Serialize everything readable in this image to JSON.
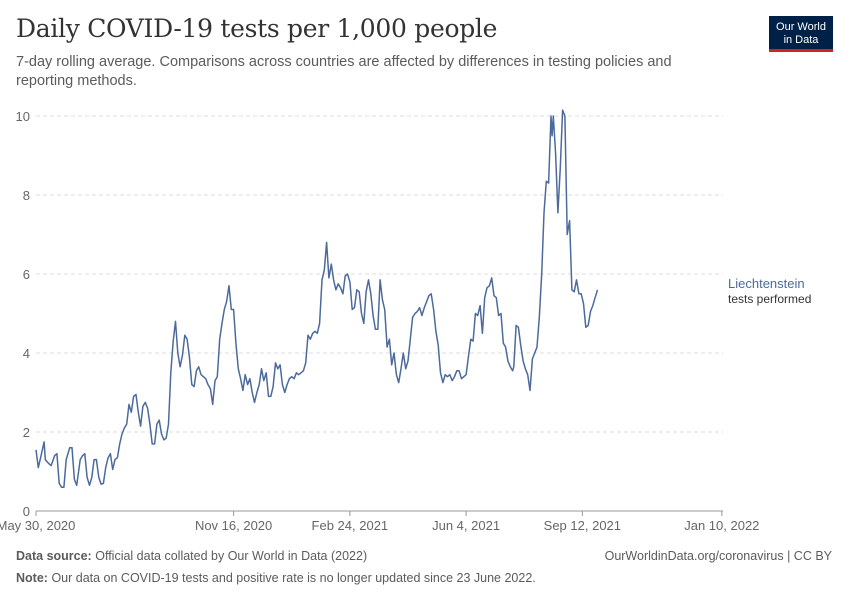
{
  "header": {
    "title": "Daily COVID-19 tests per 1,000 people",
    "subtitle": "7-day rolling average. Comparisons across countries are affected by differences in testing policies and reporting methods."
  },
  "logo": {
    "line1": "Our World",
    "line2": "in Data"
  },
  "footer": {
    "source_label": "Data source:",
    "source_text": "Official data collated by Our World in Data (2022)",
    "url": "OurWorldinData.org/coronavirus | CC BY",
    "note_label": "Note:",
    "note_text": "Our data on COVID-19 tests and positive rate is no longer updated since 23 June 2022."
  },
  "colors": {
    "series": "#4c6a9c",
    "grid": "#dddddd",
    "axis": "#666666"
  },
  "chart_data": {
    "type": "line",
    "title": "Daily COVID-19 tests per 1,000 people",
    "xlabel": "",
    "ylabel": "",
    "ylim": [
      0,
      10
    ],
    "xlim": [
      0,
      591
    ],
    "yticks": [
      0,
      2,
      4,
      6,
      8,
      10
    ],
    "xticks": [
      {
        "day": 0,
        "label": "May 30, 2020"
      },
      {
        "day": 170,
        "label": "Nov 16, 2020"
      },
      {
        "day": 270,
        "label": "Feb 24, 2021"
      },
      {
        "day": 370,
        "label": "Jun 4, 2021"
      },
      {
        "day": 470,
        "label": "Sep 12, 2021"
      },
      {
        "day": 590,
        "label": "Jan 10, 2022"
      }
    ],
    "grid": true,
    "series": [
      {
        "name": "Liechtenstein",
        "sublabel": "tests performed",
        "points": [
          [
            0,
            1.55
          ],
          [
            2,
            1.1
          ],
          [
            4,
            1.35
          ],
          [
            7,
            1.75
          ],
          [
            8,
            1.3
          ],
          [
            11,
            1.2
          ],
          [
            13,
            1.15
          ],
          [
            16,
            1.4
          ],
          [
            18,
            1.45
          ],
          [
            20,
            0.7
          ],
          [
            22,
            0.6
          ],
          [
            24,
            0.6
          ],
          [
            26,
            1.3
          ],
          [
            29,
            1.6
          ],
          [
            31,
            1.6
          ],
          [
            33,
            0.8
          ],
          [
            35,
            0.65
          ],
          [
            38,
            1.3
          ],
          [
            40,
            1.4
          ],
          [
            42,
            1.45
          ],
          [
            44,
            0.85
          ],
          [
            46,
            0.65
          ],
          [
            48,
            0.85
          ],
          [
            50,
            1.3
          ],
          [
            52,
            1.3
          ],
          [
            54,
            0.85
          ],
          [
            56,
            0.68
          ],
          [
            58,
            0.7
          ],
          [
            60,
            1.1
          ],
          [
            62,
            1.35
          ],
          [
            64,
            1.45
          ],
          [
            66,
            1.05
          ],
          [
            68,
            1.3
          ],
          [
            70,
            1.35
          ],
          [
            72,
            1.7
          ],
          [
            74,
            1.95
          ],
          [
            76,
            2.1
          ],
          [
            78,
            2.2
          ],
          [
            80,
            2.7
          ],
          [
            82,
            2.5
          ],
          [
            84,
            2.9
          ],
          [
            86,
            2.95
          ],
          [
            88,
            2.5
          ],
          [
            90,
            2.15
          ],
          [
            92,
            2.65
          ],
          [
            94,
            2.75
          ],
          [
            96,
            2.6
          ],
          [
            98,
            2.2
          ],
          [
            100,
            1.7
          ],
          [
            102,
            1.7
          ],
          [
            104,
            2.2
          ],
          [
            106,
            2.3
          ],
          [
            108,
            1.95
          ],
          [
            110,
            1.8
          ],
          [
            112,
            1.85
          ],
          [
            114,
            2.2
          ],
          [
            116,
            3.5
          ],
          [
            118,
            4.3
          ],
          [
            120,
            4.8
          ],
          [
            122,
            4.0
          ],
          [
            124,
            3.65
          ],
          [
            126,
            3.95
          ],
          [
            128,
            4.45
          ],
          [
            130,
            4.35
          ],
          [
            132,
            3.9
          ],
          [
            134,
            3.2
          ],
          [
            136,
            3.15
          ],
          [
            138,
            3.55
          ],
          [
            140,
            3.65
          ],
          [
            142,
            3.45
          ],
          [
            144,
            3.4
          ],
          [
            146,
            3.35
          ],
          [
            148,
            3.2
          ],
          [
            150,
            3.1
          ],
          [
            152,
            2.7
          ],
          [
            154,
            3.3
          ],
          [
            156,
            3.4
          ],
          [
            158,
            4.35
          ],
          [
            160,
            4.75
          ],
          [
            162,
            5.1
          ],
          [
            164,
            5.3
          ],
          [
            166,
            5.7
          ],
          [
            168,
            5.1
          ],
          [
            170,
            5.1
          ],
          [
            172,
            4.25
          ],
          [
            174,
            3.6
          ],
          [
            176,
            3.35
          ],
          [
            178,
            3.05
          ],
          [
            180,
            3.45
          ],
          [
            182,
            3.2
          ],
          [
            184,
            3.35
          ],
          [
            186,
            3.0
          ],
          [
            188,
            2.75
          ],
          [
            190,
            3.0
          ],
          [
            192,
            3.2
          ],
          [
            194,
            3.6
          ],
          [
            196,
            3.3
          ],
          [
            198,
            3.5
          ],
          [
            200,
            2.9
          ],
          [
            202,
            2.9
          ],
          [
            204,
            3.15
          ],
          [
            206,
            3.75
          ],
          [
            208,
            3.6
          ],
          [
            210,
            3.7
          ],
          [
            212,
            3.2
          ],
          [
            214,
            3.0
          ],
          [
            216,
            3.2
          ],
          [
            218,
            3.35
          ],
          [
            220,
            3.4
          ],
          [
            222,
            3.35
          ],
          [
            224,
            3.5
          ],
          [
            226,
            3.45
          ],
          [
            228,
            3.5
          ],
          [
            230,
            3.55
          ],
          [
            232,
            3.75
          ],
          [
            234,
            4.45
          ],
          [
            236,
            4.35
          ],
          [
            238,
            4.5
          ],
          [
            240,
            4.55
          ],
          [
            242,
            4.5
          ],
          [
            244,
            4.75
          ],
          [
            246,
            5.85
          ],
          [
            248,
            6.1
          ],
          [
            250,
            6.8
          ],
          [
            252,
            5.9
          ],
          [
            254,
            6.25
          ],
          [
            256,
            5.85
          ],
          [
            258,
            5.6
          ],
          [
            260,
            5.75
          ],
          [
            262,
            5.65
          ],
          [
            264,
            5.5
          ],
          [
            266,
            5.95
          ],
          [
            268,
            6.0
          ],
          [
            270,
            5.8
          ],
          [
            272,
            5.1
          ],
          [
            274,
            5.15
          ],
          [
            276,
            5.6
          ],
          [
            278,
            5.55
          ],
          [
            280,
            5.0
          ],
          [
            282,
            4.75
          ],
          [
            284,
            5.55
          ],
          [
            286,
            5.85
          ],
          [
            288,
            5.5
          ],
          [
            290,
            4.95
          ],
          [
            292,
            4.6
          ],
          [
            294,
            4.6
          ],
          [
            296,
            5.85
          ],
          [
            298,
            5.35
          ],
          [
            300,
            5.1
          ],
          [
            302,
            4.15
          ],
          [
            304,
            4.35
          ],
          [
            306,
            3.7
          ],
          [
            308,
            4.0
          ],
          [
            310,
            3.45
          ],
          [
            312,
            3.25
          ],
          [
            314,
            3.6
          ],
          [
            316,
            4.0
          ],
          [
            318,
            3.6
          ],
          [
            320,
            3.8
          ],
          [
            322,
            4.35
          ],
          [
            324,
            4.9
          ],
          [
            326,
            5.0
          ],
          [
            328,
            5.05
          ],
          [
            330,
            5.15
          ],
          [
            332,
            4.95
          ],
          [
            334,
            5.15
          ],
          [
            336,
            5.3
          ],
          [
            338,
            5.45
          ],
          [
            340,
            5.5
          ],
          [
            342,
            5.1
          ],
          [
            344,
            4.55
          ],
          [
            346,
            4.2
          ],
          [
            348,
            3.5
          ],
          [
            350,
            3.25
          ],
          [
            352,
            3.45
          ],
          [
            354,
            3.4
          ],
          [
            356,
            3.45
          ],
          [
            358,
            3.3
          ],
          [
            360,
            3.4
          ],
          [
            362,
            3.55
          ],
          [
            364,
            3.55
          ],
          [
            366,
            3.35
          ],
          [
            368,
            3.4
          ],
          [
            370,
            3.45
          ],
          [
            372,
            3.9
          ],
          [
            374,
            4.35
          ],
          [
            376,
            4.3
          ],
          [
            378,
            5.0
          ],
          [
            380,
            4.95
          ],
          [
            382,
            5.2
          ],
          [
            384,
            4.5
          ],
          [
            386,
            5.4
          ],
          [
            388,
            5.65
          ],
          [
            390,
            5.7
          ],
          [
            392,
            5.9
          ],
          [
            394,
            5.45
          ],
          [
            396,
            5.4
          ],
          [
            398,
            4.95
          ],
          [
            400,
            5.0
          ],
          [
            402,
            4.25
          ],
          [
            404,
            4.15
          ],
          [
            406,
            3.8
          ],
          [
            408,
            3.65
          ],
          [
            410,
            3.55
          ],
          [
            411,
            3.65
          ],
          [
            413,
            4.7
          ],
          [
            415,
            4.65
          ],
          [
            417,
            4.2
          ],
          [
            419,
            3.8
          ],
          [
            421,
            3.6
          ],
          [
            423,
            3.45
          ],
          [
            425,
            3.05
          ],
          [
            427,
            3.85
          ],
          [
            429,
            4.0
          ],
          [
            431,
            4.15
          ],
          [
            433,
            4.9
          ],
          [
            435,
            6.0
          ],
          [
            437,
            7.55
          ],
          [
            439,
            8.35
          ],
          [
            441,
            8.3
          ],
          [
            443,
            10.0
          ],
          [
            444,
            9.5
          ],
          [
            445,
            10.0
          ],
          [
            447,
            9.05
          ],
          [
            449,
            7.55
          ],
          [
            451,
            8.7
          ],
          [
            453,
            10.15
          ],
          [
            455,
            10.0
          ],
          [
            457,
            7.0
          ],
          [
            459,
            7.35
          ],
          [
            461,
            5.6
          ],
          [
            463,
            5.55
          ],
          [
            465,
            5.85
          ],
          [
            467,
            5.5
          ],
          [
            469,
            5.5
          ],
          [
            471,
            5.25
          ],
          [
            473,
            4.65
          ],
          [
            475,
            4.7
          ],
          [
            477,
            5.05
          ],
          [
            479,
            5.2
          ],
          [
            481,
            5.4
          ],
          [
            483,
            5.6
          ]
        ]
      }
    ]
  }
}
